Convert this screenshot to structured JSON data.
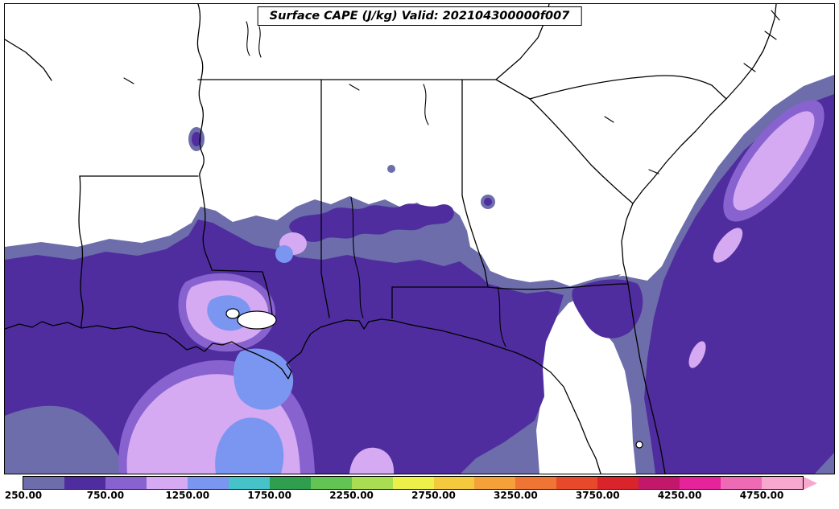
{
  "chart_data": {
    "type": "heatmap",
    "subtype": "filled_contour_weather_map",
    "title": "Surface CAPE (J/kg) Valid: 202104300000f007",
    "variable": "Surface CAPE",
    "units": "J/kg",
    "valid_time": "202104300000f007",
    "forecast_hour": "f007",
    "region": "Southeastern United States, Gulf of Mexico and western Atlantic",
    "levels": [
      250,
      500,
      750,
      1000,
      1250,
      1500,
      1750,
      2000,
      2250,
      2500,
      2750,
      3000,
      3250,
      3500,
      3750,
      4000,
      4250,
      4500,
      4750,
      5000
    ],
    "colors": [
      "#6d6dab",
      "#4f2d9e",
      "#8863cf",
      "#d5aaf2",
      "#7b96f0",
      "#45c3c8",
      "#2f9e4f",
      "#63c453",
      "#aade52",
      "#eef04a",
      "#f5c93e",
      "#f5a038",
      "#f07433",
      "#e8492b",
      "#d8242a",
      "#c2186c",
      "#e5239a",
      "#ef6ab4",
      "#f8a8cf"
    ],
    "tick_values": [
      250,
      750,
      1250,
      1750,
      2250,
      2750,
      3250,
      3750,
      4250,
      4750
    ],
    "tick_labels": [
      "250.00",
      "750.00",
      "1250.00",
      "1750.00",
      "2250.00",
      "2750.00",
      "3250.00",
      "3750.00",
      "4250.00",
      "4750.00"
    ],
    "colorbar": {
      "orientation": "horizontal",
      "position": "bottom",
      "extend": "max"
    },
    "legend_position": "bottom",
    "grid": false,
    "observed_value_regions": [
      {
        "area": "Gulf of Mexico and central Gulf Coast (TX/LA/MS/AL)",
        "cape_range_jkg": "500-1000"
      },
      {
        "area": "Coastal Louisiana around New Orleans / Lake Pontchartrain",
        "cape_range_jkg": "1000-1500"
      },
      {
        "area": "Offshore waters south of Louisiana",
        "cape_range_jkg": "1000-1500"
      },
      {
        "area": "Inland Mississippi/Alabama band near Tennessee border",
        "cape_range_jkg": "250-1000"
      },
      {
        "area": "Atlantic offshore band along Carolinas-Georgia-Florida coast",
        "cape_range_jkg": "250-1250"
      },
      {
        "area": "Interior Southeast (Tennessee, northern Alabama/Georgia, inland Carolinas)",
        "cape_range_jkg": "below 250"
      }
    ]
  }
}
